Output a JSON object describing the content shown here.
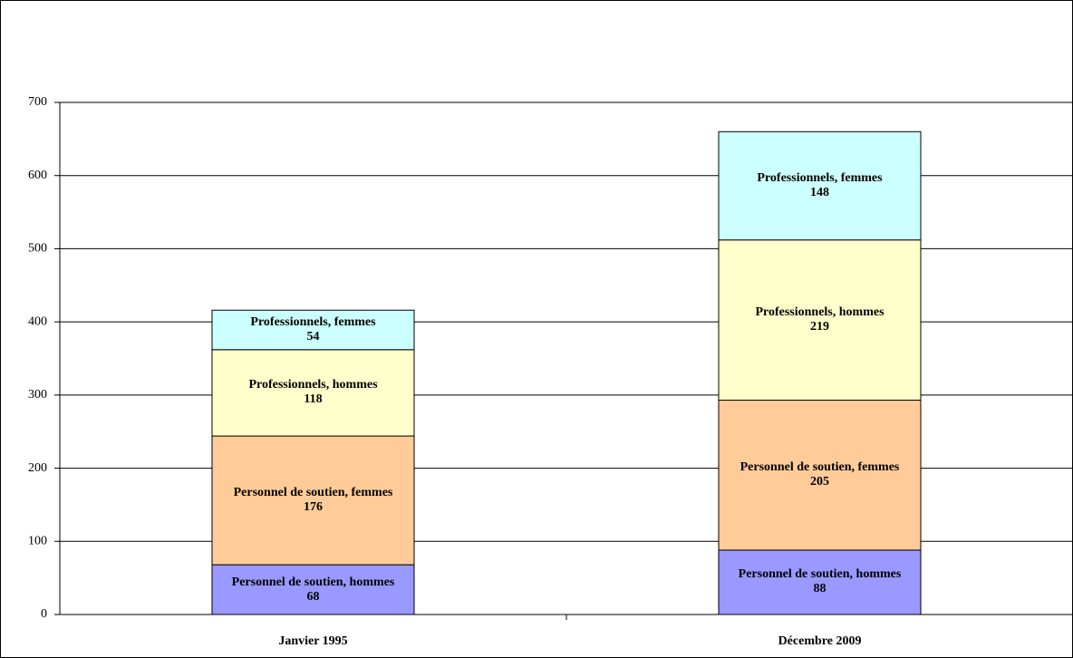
{
  "chart_data": {
    "type": "stacked_bar",
    "categories": [
      "Janvier 1995",
      "Décembre 2009"
    ],
    "series": [
      {
        "name": "Personnel de soutien, hommes",
        "color": "#9999ff",
        "values": [
          68,
          88
        ]
      },
      {
        "name": "Personnel de soutien, femmes",
        "color": "#ffcc99",
        "values": [
          176,
          205
        ]
      },
      {
        "name": "Professionnels, hommes",
        "color": "#ffffcc",
        "values": [
          118,
          219
        ]
      },
      {
        "name": "Professionnels, femmes",
        "color": "#ccffff",
        "values": [
          54,
          148
        ]
      }
    ],
    "ylim": [
      0,
      700
    ],
    "yticks": [
      0,
      100,
      200,
      300,
      400,
      500,
      600,
      700
    ],
    "grid": true
  }
}
